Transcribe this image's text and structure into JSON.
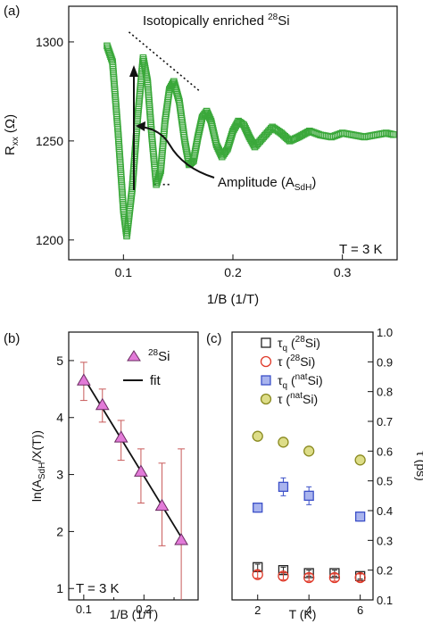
{
  "chart_data": [
    {
      "panel_label": "(a)",
      "type": "line",
      "title": "",
      "annotation_text": "Isotopically enriched ",
      "annotation_sup": "28",
      "annotation_suffix": "Si",
      "amplitude_label": "Amplitude (A",
      "amplitude_sub": "SdH",
      "amplitude_suffix": ")",
      "temperature": "T = 3 K",
      "xlabel": "1/B (1/T)",
      "ylabel_main": "R",
      "ylabel_sub": "xx",
      "ylabel_unit": " (Ω)",
      "xlim": [
        0.05,
        0.35
      ],
      "ylim": [
        1190,
        1318
      ],
      "x_ticks": [
        {
          "v": 0.1,
          "label": "0.1"
        },
        {
          "v": 0.2,
          "label": "0.2"
        },
        {
          "v": 0.3,
          "label": "0.3"
        }
      ],
      "y_ticks": [
        {
          "v": 1200,
          "label": "1200"
        },
        {
          "v": 1250,
          "label": "1250"
        },
        {
          "v": 1300,
          "label": "1300"
        }
      ],
      "series": [
        {
          "marker": "square-open",
          "color": "#3aa83a",
          "x": [
            0.085,
            0.09,
            0.095,
            0.1,
            0.103,
            0.108,
            0.113,
            0.118,
            0.122,
            0.126,
            0.13,
            0.134,
            0.138,
            0.142,
            0.146,
            0.151,
            0.156,
            0.16,
            0.164,
            0.168,
            0.172,
            0.176,
            0.18,
            0.185,
            0.19,
            0.195,
            0.2,
            0.205,
            0.21,
            0.215,
            0.22,
            0.228,
            0.236,
            0.244,
            0.252,
            0.26,
            0.27,
            0.28,
            0.29,
            0.3,
            0.31,
            0.32,
            0.33,
            0.34,
            0.348
          ],
          "y": [
            1298,
            1290,
            1255,
            1215,
            1202,
            1226,
            1262,
            1292,
            1280,
            1252,
            1228,
            1235,
            1260,
            1276,
            1280,
            1270,
            1250,
            1238,
            1240,
            1252,
            1262,
            1265,
            1260,
            1248,
            1242,
            1246,
            1255,
            1260,
            1258,
            1252,
            1247,
            1252,
            1257,
            1254,
            1250,
            1252,
            1255,
            1253,
            1252,
            1254,
            1253,
            1252,
            1253,
            1254,
            1253
          ]
        }
      ],
      "envelope_line": {
        "x": [
          0.105,
          0.17
        ],
        "y": [
          1305,
          1275
        ]
      },
      "minimum_line": {
        "x": [
          0.128,
          0.142
        ],
        "y": [
          1228,
          1228
        ]
      }
    },
    {
      "panel_label": "(b)",
      "type": "scatter",
      "xlabel": "1/B (1/T)",
      "ylabel_prefix": "ln(A",
      "ylabel_sub": "SdH",
      "ylabel_suffix": "/X(T))",
      "temperature": "T = 3 K",
      "xlim": [
        0.075,
        0.29
      ],
      "ylim": [
        0.8,
        5.5
      ],
      "x_ticks": [
        {
          "v": 0.1,
          "label": "0.1"
        },
        {
          "v": 0.2,
          "label": "0.2"
        }
      ],
      "x_minor_ticks": [
        0.15,
        0.25
      ],
      "y_ticks": [
        {
          "v": 1,
          "label": "1"
        },
        {
          "v": 2,
          "label": "2"
        },
        {
          "v": 3,
          "label": "3"
        },
        {
          "v": 4,
          "label": "4"
        },
        {
          "v": 5,
          "label": "5"
        }
      ],
      "legend": [
        {
          "sup": "28",
          "label": "Si",
          "marker": "triangle"
        },
        {
          "label": "fit",
          "marker": "line"
        }
      ],
      "series": [
        {
          "marker": "triangle",
          "color": "#e27ad8",
          "x": [
            0.1,
            0.131,
            0.162,
            0.195,
            0.23,
            0.262
          ],
          "y": [
            4.65,
            4.22,
            3.65,
            3.05,
            2.45,
            1.85
          ],
          "err_low": [
            0.35,
            0.3,
            0.4,
            0.55,
            0.7,
            1.6
          ],
          "err_high": [
            0.32,
            0.28,
            0.3,
            0.4,
            0.75,
            1.6
          ]
        }
      ],
      "fit": {
        "x": [
          0.1,
          0.262
        ],
        "y": [
          4.7,
          1.9
        ]
      }
    },
    {
      "panel_label": "(c)",
      "type": "scatter",
      "xlabel": "T (K)",
      "ylabel_right": "τ (ps)",
      "xlim": [
        1,
        6.5
      ],
      "ylim": [
        0.1,
        1.0
      ],
      "x_ticks": [
        {
          "v": 2,
          "label": "2"
        },
        {
          "v": 4,
          "label": "4"
        },
        {
          "v": 6,
          "label": "6"
        }
      ],
      "y_ticks": [
        {
          "v": 0.1,
          "label": "0.1"
        },
        {
          "v": 0.2,
          "label": "0.2"
        },
        {
          "v": 0.3,
          "label": "0.3"
        },
        {
          "v": 0.4,
          "label": "0.4"
        },
        {
          "v": 0.5,
          "label": "0.5"
        },
        {
          "v": 0.6,
          "label": "0.6"
        },
        {
          "v": 0.7,
          "label": "0.7"
        },
        {
          "v": 0.8,
          "label": "0.8"
        },
        {
          "v": 0.9,
          "label": "0.9"
        },
        {
          "v": 1.0,
          "label": "1.0"
        }
      ],
      "series": [
        {
          "name_main": "τ",
          "name_sub": "q",
          "name_sup": "28",
          "name_suffix": "Si",
          "marker": "square-open",
          "color": "#222222",
          "fill": "none",
          "x": [
            2,
            3,
            4,
            5,
            6
          ],
          "y": [
            0.21,
            0.2,
            0.19,
            0.19,
            0.18
          ],
          "err": [
            0.01,
            0.01,
            0.01,
            0.01,
            0.01
          ]
        },
        {
          "name_main": "τ",
          "name_sub": "",
          "name_sup": "28",
          "name_suffix": "Si",
          "marker": "circle-open",
          "color": "#e03a2a",
          "fill": "none",
          "x": [
            2,
            3,
            4,
            5,
            6
          ],
          "y": [
            0.185,
            0.18,
            0.175,
            0.175,
            0.175
          ],
          "err": [
            0.012,
            0.012,
            0.012,
            0.012,
            0.012
          ]
        },
        {
          "name_main": "τ",
          "name_sub": "q",
          "name_sup": "nat",
          "name_suffix": "Si",
          "marker": "square-filled",
          "color": "#3c50c8",
          "fill": "#a9b4ee",
          "x": [
            2,
            3,
            4,
            6
          ],
          "y": [
            0.41,
            0.48,
            0.45,
            0.38
          ],
          "err": [
            0.015,
            0.03,
            0.03,
            0.015
          ]
        },
        {
          "name_main": "τ",
          "name_sub": "",
          "name_sup": "nat",
          "name_suffix": "Si",
          "marker": "circle-filled",
          "color": "#8a8a20",
          "fill": "#dddd88",
          "x": [
            2,
            3,
            4,
            6
          ],
          "y": [
            0.65,
            0.63,
            0.6,
            0.57
          ],
          "err": [
            0.012,
            0.012,
            0.012,
            0.012
          ]
        }
      ]
    }
  ]
}
